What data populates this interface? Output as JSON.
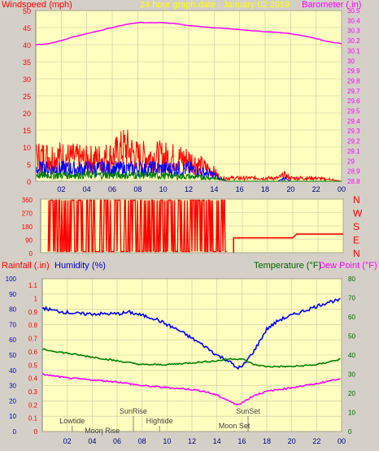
{
  "chart_data": [
    {
      "type": "line",
      "title": "24 hour graph date : January 02 2019",
      "left_axis_label": "Windspeed (mph)",
      "right_axis_label": "Barometer (.in)",
      "x_ticks": [
        "02",
        "04",
        "06",
        "08",
        "10",
        "12",
        "14",
        "16",
        "18",
        "20",
        "22",
        "00"
      ],
      "y_left_ticks": [
        "0",
        "5",
        "10",
        "15",
        "20",
        "25",
        "30",
        "35",
        "40",
        "45",
        "50"
      ],
      "y_left_range": [
        0,
        50
      ],
      "y_right_ticks": [
        "28.8",
        "28.9",
        "29",
        "29.1",
        "29.2",
        "29.3",
        "29.4",
        "29.5",
        "29.6",
        "29.7",
        "29.8",
        "29.9",
        "30",
        "30.1",
        "30.2",
        "30.3",
        "30.4",
        "30.5"
      ],
      "y_right_range": [
        28.8,
        30.5
      ],
      "grid": true,
      "series": [
        {
          "name": "Barometer",
          "color": "#ff00ff",
          "axis": "right",
          "x": [
            0,
            1,
            2,
            3,
            4,
            5,
            6,
            7,
            8,
            9,
            10,
            11,
            12,
            13,
            14,
            15,
            16,
            17,
            18,
            19,
            20,
            21,
            22,
            23,
            24
          ],
          "values": [
            30.16,
            30.17,
            30.2,
            30.24,
            30.27,
            30.3,
            30.33,
            30.36,
            30.38,
            30.38,
            30.38,
            30.37,
            30.35,
            30.34,
            30.33,
            30.32,
            30.31,
            30.3,
            30.29,
            30.28,
            30.27,
            30.25,
            30.22,
            30.19,
            30.17
          ]
        },
        {
          "name": "Wind gust",
          "color": "#ff0000",
          "axis": "left",
          "x": [
            0,
            2,
            4,
            6,
            7,
            8,
            10,
            12,
            13,
            14,
            14.5,
            15,
            16,
            18,
            19,
            19.5,
            20,
            22,
            24
          ],
          "values": [
            8,
            8,
            7,
            8,
            11,
            8,
            8,
            7,
            5,
            3,
            1,
            1,
            1,
            1,
            1,
            2,
            1,
            1,
            0
          ]
        },
        {
          "name": "Wind avg",
          "color": "#0000ff",
          "axis": "left",
          "x": [
            0,
            2,
            4,
            6,
            8,
            10,
            12,
            13,
            14,
            14.5,
            15,
            19,
            19.5,
            20,
            24
          ],
          "values": [
            4,
            4,
            4,
            4,
            4,
            4,
            4,
            3,
            2,
            0.5,
            0,
            0,
            1,
            0,
            0
          ]
        },
        {
          "name": "Wind low",
          "color": "#008000",
          "axis": "left",
          "x": [
            0,
            4,
            8,
            12,
            14,
            15,
            24
          ],
          "values": [
            2,
            2,
            2,
            1.5,
            1,
            0,
            0
          ]
        }
      ]
    },
    {
      "type": "line",
      "title": "",
      "right_axis_labels": [
        "N",
        "W",
        "S",
        "E",
        "N"
      ],
      "y_left_ticks": [
        "0",
        "90",
        "180",
        "270",
        "360"
      ],
      "y_left_range": [
        0,
        360
      ],
      "grid": true,
      "series": [
        {
          "name": "Wind direction",
          "color": "#ff0000",
          "x": [
            15.3,
            15.3,
            20,
            20.3,
            24
          ],
          "values": [
            0,
            100,
            100,
            125,
            125
          ]
        }
      ],
      "noisy_region_hours": [
        0.6,
        14.8
      ]
    },
    {
      "type": "line",
      "rainfall_label": "Rainfall (.in)",
      "humidity_label": "Humidity (%)",
      "temperature_label": "Temperature (°F)",
      "dewpoint_label": "Dew Point (°F)",
      "x_ticks": [
        "02",
        "04",
        "06",
        "08",
        "10",
        "12",
        "14",
        "16",
        "18",
        "20",
        "22",
        "00"
      ],
      "y_humidity_ticks": [
        "0",
        "10",
        "20",
        "30",
        "40",
        "50",
        "60",
        "70",
        "80",
        "90",
        "100"
      ],
      "y_rain_ticks": [
        "0",
        "0.1",
        "0.2",
        "0.3",
        "0.4",
        "0.5",
        "0.6",
        "0.7",
        "0.8",
        "0.9",
        "1",
        "1.1"
      ],
      "y_temp_ticks": [
        "0",
        "10",
        "20",
        "30",
        "40",
        "50",
        "60",
        "70",
        "80"
      ],
      "grid": true,
      "series": [
        {
          "name": "Humidity",
          "color": "#0000ff",
          "axis": "humidity",
          "x": [
            0,
            1,
            2,
            3,
            4,
            5,
            6,
            7,
            8,
            9,
            10,
            11,
            12,
            13,
            14,
            15,
            15.5,
            16,
            17,
            18,
            19,
            20,
            21,
            22,
            23,
            24
          ],
          "values": [
            81,
            79,
            78,
            77,
            77,
            77,
            77,
            78,
            76,
            74,
            70,
            66,
            61,
            56,
            50,
            46,
            42,
            42,
            53,
            67,
            73,
            76,
            79,
            82,
            85,
            86
          ]
        },
        {
          "name": "Temperature",
          "color": "#008000",
          "axis": "temp",
          "x": [
            0,
            2,
            4,
            6,
            8,
            10,
            12,
            14,
            15,
            16,
            17,
            18,
            20,
            22,
            24
          ],
          "values": [
            43,
            41,
            39,
            37,
            35,
            35,
            36,
            37,
            38,
            38,
            35,
            34,
            34,
            35,
            38
          ]
        },
        {
          "name": "Dew Point",
          "color": "#ff00ff",
          "axis": "temp",
          "x": [
            0,
            2,
            4,
            6,
            8,
            10,
            12,
            13,
            14,
            15,
            15.5,
            16,
            17,
            18,
            20,
            22,
            24
          ],
          "values": [
            30,
            28,
            27,
            26,
            24,
            23,
            22,
            21,
            19,
            16,
            14,
            15,
            19,
            21,
            23,
            25,
            28
          ]
        }
      ],
      "annotations": [
        {
          "label": "Lowtide",
          "hour": 2.4
        },
        {
          "label": "Moon Rise",
          "hour": 4.8
        },
        {
          "label": "SunRise",
          "hour": 7.3
        },
        {
          "label": "Hightide",
          "hour": 9.4
        },
        {
          "label": "Moon Set",
          "hour": 15.4
        },
        {
          "label": "SunSet",
          "hour": 16.5
        }
      ]
    }
  ]
}
